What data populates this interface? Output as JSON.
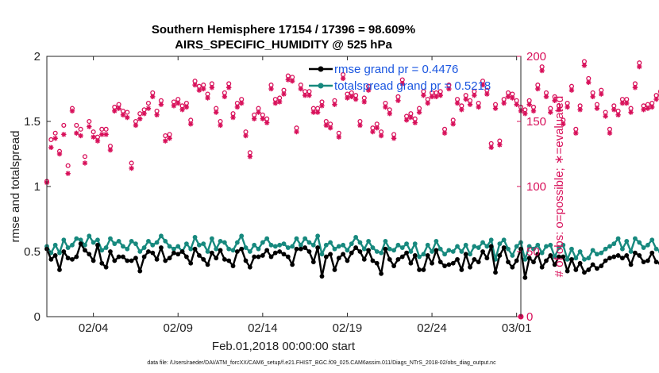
{
  "chart_data": {
    "type": "line",
    "title_line1": "Southern Hemisphere 17154 / 17396 = 98.609%",
    "title_line2": "AIRS_SPECIFIC_HUMIDITY @ 525 hPa",
    "xlabel": "Feb.01,2018 00:00:00 start",
    "ylabel_left": "rmse and totalspread",
    "ylabel_right": "# of obs: o=possible; ∗=evaluated",
    "footer": "data file: /Users/raeder/DAI/ATM_forcXX/CAM6_setup/f.e21.FHIST_BGC.f09_025.CAM6assim.011/Diags_NTrS_2018-02/obs_diag_output.nc",
    "x_tick_labels": [
      "02/04",
      "02/09",
      "02/14",
      "02/19",
      "02/24",
      "03/01"
    ],
    "x_tick_days": [
      3,
      8,
      13,
      18,
      23,
      28
    ],
    "xlim_days": [
      0.25,
      28.25
    ],
    "ylim_left": [
      0,
      2
    ],
    "y_ticks_left": [
      "0",
      "0.5",
      "1",
      "1.5",
      "2"
    ],
    "ylim_right": [
      0,
      200
    ],
    "y_ticks_right": [
      "0",
      "50",
      "100",
      "150",
      "200"
    ],
    "bin_step_days": 0.25,
    "first_bin_day": 0.25,
    "colors": {
      "rmse": "#000000",
      "spread": "#17897e",
      "obs": "#d8105a",
      "legend_text": "#1a56e0"
    },
    "series": [
      {
        "name": "rmse",
        "legend": "rmse grand pr = 0.4476",
        "values": [
          0.52,
          0.44,
          0.47,
          0.36,
          0.5,
          0.45,
          0.44,
          0.46,
          0.56,
          0.51,
          0.48,
          0.43,
          0.55,
          0.41,
          0.38,
          0.5,
          0.43,
          0.46,
          0.46,
          0.43,
          0.43,
          0.45,
          0.35,
          0.46,
          0.5,
          0.49,
          0.44,
          0.53,
          0.43,
          0.45,
          0.49,
          0.48,
          0.5,
          0.46,
          0.41,
          0.52,
          0.47,
          0.44,
          0.4,
          0.49,
          0.45,
          0.51,
          0.44,
          0.43,
          0.39,
          0.5,
          0.52,
          0.43,
          0.38,
          0.46,
          0.46,
          0.47,
          0.51,
          0.46,
          0.49,
          0.5,
          0.48,
          0.46,
          0.4,
          0.52,
          0.52,
          0.53,
          0.5,
          0.42,
          0.53,
          0.31,
          0.46,
          0.48,
          0.36,
          0.45,
          0.48,
          0.43,
          0.49,
          0.53,
          0.5,
          0.44,
          0.51,
          0.43,
          0.41,
          0.33,
          0.52,
          0.44,
          0.39,
          0.44,
          0.46,
          0.49,
          0.41,
          0.47,
          0.36,
          0.36,
          0.47,
          0.41,
          0.51,
          0.42,
          0.39,
          0.4,
          0.41,
          0.44,
          0.36,
          0.48,
          0.38,
          0.44,
          0.42,
          0.5,
          0.45,
          0.54,
          0.34,
          0.47,
          0.53,
          0.42,
          0.38,
          0.43,
          0.52,
          0.3,
          0.45,
          0.42,
          0.48,
          0.38,
          0.43,
          0.47,
          0.4,
          0.46,
          0.46,
          0.35,
          0.44,
          0.36,
          0.41,
          0.34,
          0.36,
          0.4,
          0.37,
          0.39,
          0.43,
          0.45,
          0.46,
          0.47,
          0.45,
          0.47,
          0.4,
          0.49,
          0.47,
          0.42,
          0.43,
          0.49,
          0.42,
          0.41,
          0.44,
          0.38,
          0.43,
          0.45,
          0.41,
          0.37,
          0.44,
          0.42,
          0.39,
          0.36
        ]
      },
      {
        "name": "totalspread",
        "legend": "totalspread grand pr = 0.5218",
        "values": [
          0.54,
          0.49,
          0.55,
          0.49,
          0.59,
          0.53,
          0.55,
          0.6,
          0.59,
          0.55,
          0.62,
          0.57,
          0.59,
          0.51,
          0.53,
          0.6,
          0.56,
          0.58,
          0.54,
          0.52,
          0.58,
          0.56,
          0.5,
          0.53,
          0.58,
          0.55,
          0.57,
          0.62,
          0.58,
          0.54,
          0.52,
          0.54,
          0.5,
          0.56,
          0.52,
          0.61,
          0.55,
          0.56,
          0.5,
          0.6,
          0.52,
          0.58,
          0.57,
          0.52,
          0.51,
          0.57,
          0.62,
          0.53,
          0.5,
          0.55,
          0.52,
          0.57,
          0.6,
          0.55,
          0.54,
          0.55,
          0.56,
          0.53,
          0.54,
          0.6,
          0.55,
          0.6,
          0.57,
          0.55,
          0.62,
          0.48,
          0.55,
          0.57,
          0.52,
          0.54,
          0.55,
          0.51,
          0.56,
          0.61,
          0.57,
          0.52,
          0.58,
          0.53,
          0.5,
          0.49,
          0.58,
          0.52,
          0.51,
          0.55,
          0.53,
          0.56,
          0.5,
          0.56,
          0.46,
          0.48,
          0.55,
          0.5,
          0.58,
          0.52,
          0.48,
          0.51,
          0.5,
          0.54,
          0.5,
          0.55,
          0.48,
          0.54,
          0.53,
          0.57,
          0.54,
          0.59,
          0.44,
          0.56,
          0.59,
          0.52,
          0.47,
          0.54,
          0.57,
          0.44,
          0.54,
          0.52,
          0.55,
          0.49,
          0.54,
          0.55,
          0.46,
          0.53,
          0.55,
          0.44,
          0.52,
          0.45,
          0.5,
          0.44,
          0.45,
          0.51,
          0.48,
          0.49,
          0.52,
          0.54,
          0.56,
          0.6,
          0.52,
          0.58,
          0.5,
          0.6,
          0.57,
          0.53,
          0.55,
          0.59,
          0.52,
          0.5,
          0.56,
          0.45,
          0.52,
          0.56,
          0.53,
          0.48,
          0.56,
          0.52,
          0.5,
          0.43
        ]
      },
      {
        "name": "obs_possible",
        "values": [
          104,
          136,
          141,
          127,
          147,
          116,
          160,
          147,
          144,
          123,
          150,
          142,
          138,
          144,
          144,
          131,
          161,
          163,
          158,
          157,
          118,
          150,
          156,
          159,
          164,
          172,
          158,
          166,
          139,
          140,
          165,
          167,
          162,
          164,
          151,
          181,
          177,
          178,
          171,
          179,
          160,
          150,
          172,
          179,
          156,
          164,
          167,
          142,
          126,
          155,
          160,
          155,
          152,
          178,
          167,
          168,
          174,
          185,
          184,
          145,
          178,
          173,
          173,
          160,
          160,
          165,
          150,
          148,
          166,
          141,
          186,
          171,
          172,
          170,
          150,
          168,
          177,
          145,
          148,
          142,
          164,
          159,
          140,
          169,
          182,
          154,
          156,
          152,
          160,
          173,
          167,
          172,
          172,
          173,
          144,
          178,
          151,
          167,
          162,
          170,
          166,
          173,
          164,
          181,
          174,
          133,
          163,
          135,
          167,
          172,
          171,
          166,
          161,
          159,
          166,
          161,
          178,
          192,
          172,
          160,
          169,
          162,
          151,
          164,
          177,
          144,
          162,
          196,
          183,
          172,
          163,
          174,
          157,
          144,
          162,
          158,
          167,
          167,
          160,
          179,
          195,
          162,
          163,
          164,
          170,
          173,
          168,
          162,
          156,
          122,
          165,
          158,
          172,
          163,
          163,
          167,
          163,
          163
        ]
      },
      {
        "name": "obs_evaluated",
        "values": [
          103,
          130,
          137,
          125,
          140,
          110,
          158,
          141,
          139,
          118,
          146,
          138,
          135,
          140,
          140,
          128,
          158,
          160,
          155,
          153,
          114,
          147,
          152,
          156,
          160,
          169,
          155,
          163,
          135,
          137,
          162,
          164,
          159,
          161,
          148,
          178,
          174,
          175,
          168,
          176,
          157,
          147,
          169,
          176,
          153,
          161,
          164,
          139,
          123,
          152,
          157,
          152,
          149,
          175,
          164,
          165,
          171,
          182,
          181,
          142,
          175,
          170,
          170,
          157,
          157,
          162,
          147,
          145,
          163,
          138,
          183,
          168,
          169,
          167,
          147,
          165,
          174,
          142,
          145,
          139,
          161,
          156,
          137,
          166,
          179,
          151,
          153,
          149,
          157,
          170,
          164,
          169,
          169,
          170,
          141,
          175,
          148,
          164,
          159,
          167,
          163,
          170,
          161,
          178,
          171,
          130,
          160,
          132,
          164,
          169,
          168,
          163,
          158,
          156,
          163,
          158,
          175,
          189,
          169,
          157,
          166,
          159,
          148,
          161,
          174,
          141,
          159,
          193,
          180,
          169,
          160,
          171,
          154,
          141,
          159,
          155,
          164,
          164,
          157,
          176,
          192,
          159,
          160,
          161,
          167,
          170,
          165,
          159,
          153,
          117,
          162,
          155,
          169,
          160,
          160,
          164,
          160,
          160
        ]
      }
    ]
  }
}
